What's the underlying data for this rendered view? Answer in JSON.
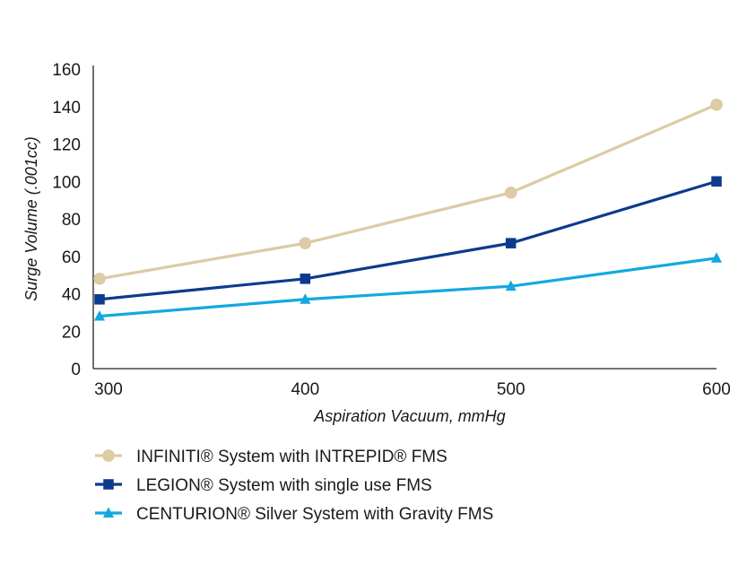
{
  "chart_data": {
    "type": "line",
    "title": "",
    "xlabel": "Aspiration Vacuum, mmHg",
    "ylabel": "Surge Volume (.001cc)",
    "x": [
      300,
      400,
      500,
      600
    ],
    "x_tick_labels": [
      "300",
      "400",
      "500",
      "600"
    ],
    "xlim": [
      300,
      600
    ],
    "ylim": [
      0,
      160
    ],
    "y_ticks": [
      0,
      20,
      40,
      60,
      80,
      100,
      120,
      140,
      160
    ],
    "grid": false,
    "legend_position": "bottom",
    "series": [
      {
        "name": "INFINITI® System with INTREPID® FMS",
        "marker": "circle",
        "color": "#dccba4",
        "values": [
          48,
          67,
          94,
          141
        ]
      },
      {
        "name": "LEGION® System with single use FMS",
        "marker": "square",
        "color": "#0d3a8c",
        "values": [
          37,
          48,
          67,
          100
        ]
      },
      {
        "name": "CENTURION® Silver System with Gravity FMS",
        "marker": "triangle",
        "color": "#14a8e0",
        "values": [
          28,
          37,
          44,
          59
        ]
      }
    ]
  }
}
